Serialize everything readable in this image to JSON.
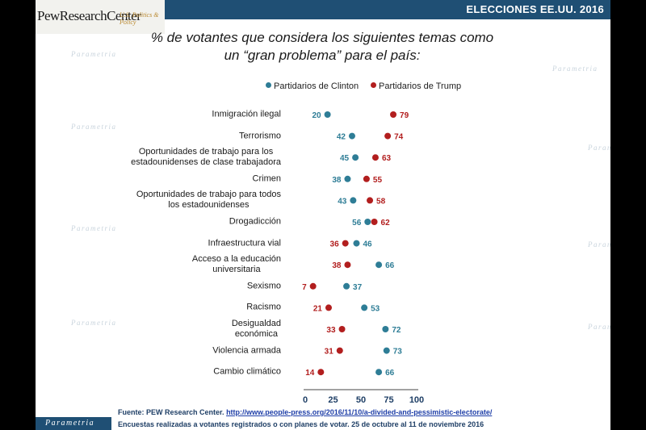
{
  "header": {
    "title": "ELECCIONES EE.UU. 2016"
  },
  "logo": {
    "main": "PewResearchCenter",
    "sub": "U.S. Politics & Policy"
  },
  "watermark": "Parametria",
  "colors": {
    "clinton": "#2e7d96",
    "trump": "#b21e1e",
    "header": "#1f4f74"
  },
  "chart_data": {
    "type": "scatter",
    "title": "% de votantes que considera los siguientes temas como un “gran problema” para el país:",
    "title_lines": [
      "% de votantes que considera los siguientes temas como",
      "un “gran problema” para el país:"
    ],
    "legend": [
      "Partidarios de Clinton",
      "Partidarios de Trump"
    ],
    "legend_position": "top",
    "xlim": [
      0,
      100
    ],
    "x_ticks": [
      0,
      25,
      50,
      75,
      100
    ],
    "grid": false,
    "categories": [
      [
        "Inmigración ilegal"
      ],
      [
        "Terrorismo"
      ],
      [
        "Oportunidades de trabajo para los",
        "estadounidenses de clase trabajadora"
      ],
      [
        "Crimen"
      ],
      [
        "Oportunidades de trabajo para todos",
        "los estadounidenses"
      ],
      [
        "Drogadicción"
      ],
      [
        "Infraestructura vial"
      ],
      [
        "Acceso a la educación",
        "universitaria"
      ],
      [
        "Sexismo"
      ],
      [
        "Racismo"
      ],
      [
        "Desigualdad",
        "económica"
      ],
      [
        "Violencia armada"
      ],
      [
        "Cambio climático"
      ]
    ],
    "series": [
      {
        "name": "Partidarios de Clinton",
        "values": [
          20,
          42,
          45,
          38,
          43,
          56,
          46,
          66,
          37,
          53,
          72,
          73,
          66
        ]
      },
      {
        "name": "Partidarios de Trump",
        "values": [
          79,
          74,
          63,
          55,
          58,
          62,
          36,
          38,
          7,
          21,
          33,
          31,
          14
        ]
      }
    ]
  },
  "source": {
    "prefix": "Fuente: PEW Research Center.",
    "link": "http://www.people-press.org/2016/11/10/a-divided-and-pessimistic-electorate/",
    "note": "Encuestas realizadas a votantes registrados o con planes de votar. 25 de octubre al 11 de noviembre 2016"
  },
  "footer": {
    "brand": "Parametria"
  }
}
